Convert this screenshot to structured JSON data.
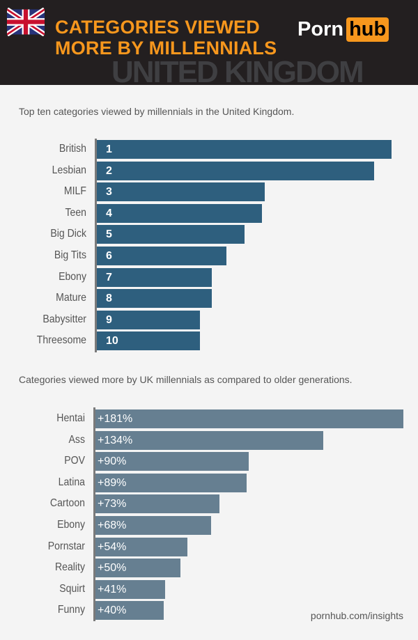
{
  "header": {
    "title_line1": "CATEGORIES VIEWED",
    "title_line2": "MORE BY MILLENNIALS",
    "watermark": "UNITED KINGDOM",
    "logo_text_1": "Porn",
    "logo_text_2": "hub",
    "flag_icon": "uk-flag-icon"
  },
  "chart_data": [
    {
      "type": "bar",
      "orientation": "horizontal",
      "title": "Top ten categories viewed by millennials in the United Kingdom.",
      "categories": [
        "British",
        "Lesbian",
        "MILF",
        "Teen",
        "Big Dick",
        "Big Tits",
        "Ebony",
        "Mature",
        "Babysitter",
        "Threesome"
      ],
      "rank_labels": [
        "1",
        "2",
        "3",
        "4",
        "5",
        "6",
        "7",
        "8",
        "9",
        "10"
      ],
      "relative_values": [
        100,
        94,
        57,
        56,
        50,
        44,
        39,
        39,
        35,
        35
      ],
      "color": "#2e5f7e"
    },
    {
      "type": "bar",
      "orientation": "horizontal",
      "title": "Categories viewed more by UK millennials as compared to older generations.",
      "categories": [
        "Hentai",
        "Ass",
        "POV",
        "Latina",
        "Cartoon",
        "Ebony",
        "Pornstar",
        "Reality",
        "Squirt",
        "Funny"
      ],
      "values": [
        181,
        134,
        90,
        89,
        73,
        68,
        54,
        50,
        41,
        40
      ],
      "value_labels": [
        "+181%",
        "+134%",
        "+90%",
        "+89%",
        "+73%",
        "+68%",
        "+54%",
        "+50%",
        "+41%",
        "+40%"
      ],
      "color": "#667f91"
    }
  ],
  "footer": "pornhub.com/insights"
}
